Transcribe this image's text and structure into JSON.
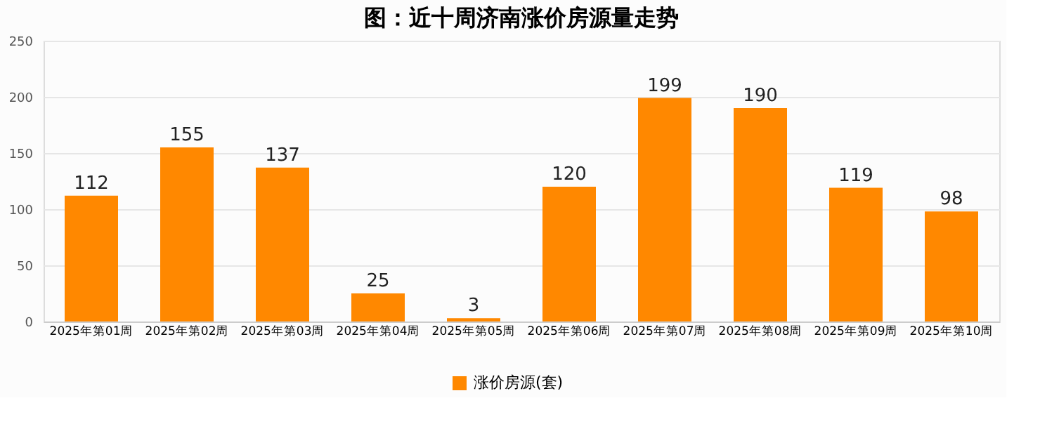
{
  "chart_data": {
    "type": "bar",
    "title": "图：近十周济南涨价房源量走势",
    "categories": [
      "2025年第01周",
      "2025年第02周",
      "2025年第03周",
      "2025年第04周",
      "2025年第05周",
      "2025年第06周",
      "2025年第07周",
      "2025年第08周",
      "2025年第09周",
      "2025年第10周"
    ],
    "series": [
      {
        "name": "涨价房源(套)",
        "color": "#ff8800",
        "values": [
          112,
          155,
          137,
          25,
          3,
          120,
          199,
          190,
          119,
          98
        ]
      }
    ],
    "ylim": [
      0,
      250
    ],
    "yticks": [
      0,
      50,
      100,
      150,
      200,
      250
    ],
    "grid": "y",
    "legend": "bottom",
    "data_labels": true
  }
}
